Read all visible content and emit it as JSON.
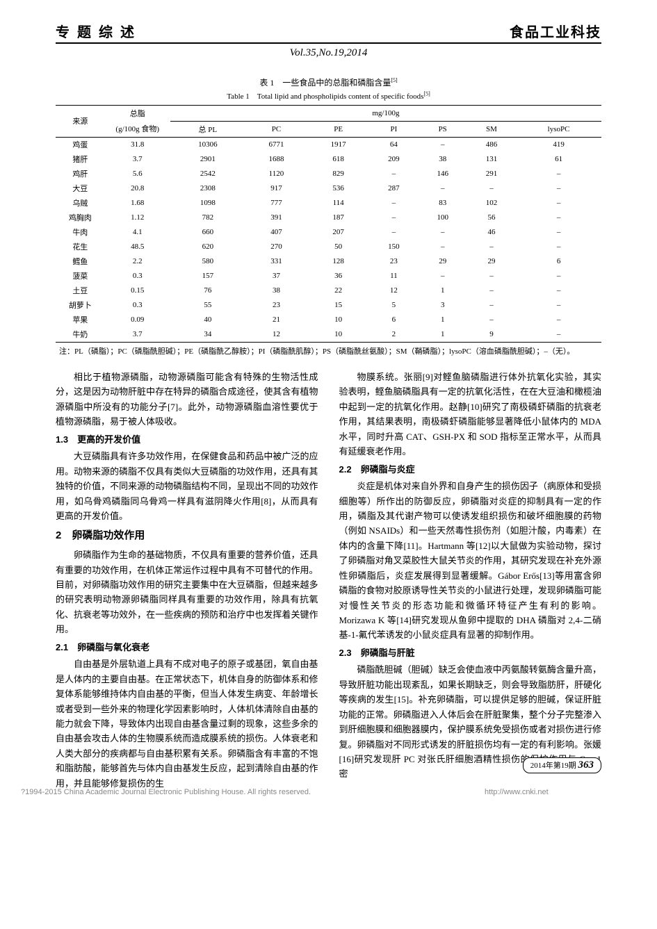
{
  "header": {
    "left": "专 题 综 述",
    "right": "食品工业科技",
    "sub": "Vol.35,No.19,2014"
  },
  "table": {
    "title_cn": "表 1　一些食品中的总脂和磷脂含量",
    "title_cn_sup": "[5]",
    "title_en": "Table 1　Total lipid and phospholipids content of specific foods",
    "title_en_sup": "[5]",
    "col_source": "来源",
    "col_totalfat": "总脂",
    "col_totalfat_unit": "(g/100g 食物)",
    "col_mg_group": "mg/100g",
    "subcols": [
      "总 PL",
      "PC",
      "PE",
      "PI",
      "PS",
      "SM",
      "lysoPC"
    ],
    "rows": [
      [
        "鸡蛋",
        "31.8",
        "10306",
        "6771",
        "1917",
        "64",
        "–",
        "486",
        "419"
      ],
      [
        "猪肝",
        "3.7",
        "2901",
        "1688",
        "618",
        "209",
        "38",
        "131",
        "61"
      ],
      [
        "鸡肝",
        "5.6",
        "2542",
        "1120",
        "829",
        "–",
        "146",
        "291",
        "–"
      ],
      [
        "大豆",
        "20.8",
        "2308",
        "917",
        "536",
        "287",
        "–",
        "–",
        "–"
      ],
      [
        "乌贼",
        "1.68",
        "1098",
        "777",
        "114",
        "–",
        "83",
        "102",
        "–"
      ],
      [
        "鸡胸肉",
        "1.12",
        "782",
        "391",
        "187",
        "–",
        "100",
        "56",
        "–"
      ],
      [
        "牛肉",
        "4.1",
        "660",
        "407",
        "207",
        "–",
        "–",
        "46",
        "–"
      ],
      [
        "花生",
        "48.5",
        "620",
        "270",
        "50",
        "150",
        "–",
        "–",
        "–"
      ],
      [
        "鳕鱼",
        "2.2",
        "580",
        "331",
        "128",
        "23",
        "29",
        "29",
        "6"
      ],
      [
        "菠菜",
        "0.3",
        "157",
        "37",
        "36",
        "11",
        "–",
        "–",
        "–"
      ],
      [
        "土豆",
        "0.15",
        "76",
        "38",
        "22",
        "12",
        "1",
        "–",
        "–"
      ],
      [
        "胡萝卜",
        "0.3",
        "55",
        "23",
        "15",
        "5",
        "3",
        "–",
        "–"
      ],
      [
        "苹果",
        "0.09",
        "40",
        "21",
        "10",
        "6",
        "1",
        "–",
        "–"
      ],
      [
        "牛奶",
        "3.7",
        "34",
        "12",
        "10",
        "2",
        "1",
        "9",
        "–"
      ]
    ],
    "note": "注：PL（磷脂）；PC（磷脂酰胆碱）；PE（磷脂酰乙醇胺）；PI（磷脂酰肌醇）；PS（磷脂酰丝氨酸）；SM（鞘磷脂）；lysoPC（溶血磷脂酰胆碱）；–（无）。"
  },
  "left_col": {
    "p1": "相比于植物源磷脂，动物源磷脂可能含有特殊的生物活性成分，这是因为动物肝脏中存在特异的磷脂合成途径，使其含有植物源磷脂中所没有的功能分子[7]。此外，动物源磷脂血溶性要优于植物源磷脂，易于被人体吸收。",
    "h1_3": "1.3　更高的开发价值",
    "p2": "大豆磷脂具有许多功效作用，在保健食品和药品中被广泛的应用。动物来源的磷脂不仅具有类似大豆磷脂的功效作用，还具有其独特的价值，不同来源的动物磷脂结构不同，呈现出不同的功效作用，如乌骨鸡磷脂同乌骨鸡一样具有滋阴降火作用[8]，从而具有更高的开发价值。",
    "h2": "2　卵磷脂功效作用",
    "p3": "卵磷脂作为生命的基础物质，不仅具有重要的营养价值，还具有重要的功效作用，在机体正常运作过程中具有不可替代的作用。目前，对卵磷脂功效作用的研究主要集中在大豆磷脂，但越来越多的研究表明动物源卵磷脂同样具有重要的功效作用，除具有抗氧化、抗衰老等功效外，在一些疾病的预防和治疗中也发挥着关键作用。",
    "h2_1": "2.1　卵磷脂与氧化衰老",
    "p4": "自由基是外层轨道上具有不成对电子的原子或基团，氧自由基是人体内的主要自由基。在正常状态下，机体自身的防御体系和修复体系能够维持体内自由基的平衡，但当人体发生病变、年龄增长或者受到一些外来的物理化学因素影响时，人体机体清除自由基的能力就会下降，导致体内出现自由基含量过剩的现象，这些多余的自由基会攻击人体的生物膜系统而造成膜系统的损伤。人体衰老和人类大部分的疾病都与自由基积累有关系。卵磷脂含有丰富的不饱和脂肪酸，能够首先与体内自由基发生反应，起到清除自由基的作用，并且能够修复损伤的生"
  },
  "right_col": {
    "p1": "物膜系统。张丽[9]对鲣鱼脑磷脂进行体外抗氧化实验，其实验表明，鲣鱼脑磷脂具有一定的抗氧化活性，在在大豆油和橄榄油中起到一定的抗氧化作用。赵静[10]研究了南极磷虾磷脂的抗衰老作用，其结果表明，南极磷虾磷脂能够显著降低小鼠体内的 MDA 水平，同时升高 CAT、GSH-PX 和 SOD 指标至正常水平，从而具有延缓衰老作用。",
    "h2_2": "2.2　卵磷脂与炎症",
    "p2": "炎症是机体对来自外界和自身产生的损伤因子（病原体和受损细胞等）所作出的防御反应，卵磷脂对炎症的抑制具有一定的作用，磷脂及其代谢产物可以使诱发组织损伤和破坏细胞膜的药物（例如 NSAIDs）和一些天然毒性损伤剂（如胆汁酸，内毒素）在体内的含量下降[11]。Hartmann 等[12]以大鼠做为实验动物，探讨了卵磷脂对角叉菜胶性大鼠关节炎的作用，其研究发现在补充外源性卵磷脂后，炎症发展得到显著缓解。Gábor Erős[13]等用富含卵磷脂的食物对胶原诱导性关节炎的小鼠进行处理，发现卵磷脂可能对慢性关节炎的形态功能和微循环特征产生有利的影响。Morizawa K 等[14]研究发现从鱼卵中提取的 DHA 磷脂对 2,4-二硝基-1-氟代苯诱发的小鼠炎症具有显著的抑制作用。",
    "h2_3": "2.3　卵磷脂与肝脏",
    "p3": "磷脂酰胆碱（胆碱）缺乏会使血液中丙氨酸转氨酶含量升高，导致肝脏功能出现紊乱，如果长期缺乏，则会导致脂肪肝，肝硬化等疾病的发生[15]。补充卵磷脂，可以提供足够的胆碱，保证肝脏功能的正常。卵磷脂进入人体后会在肝脏聚集，整个分子完整渗入到肝细胞膜和细胞器膜内，保护膜系统免受损伤或者对损伤进行修复。卵磷脂对不同形式诱发的肝脏损伤均有一定的有利影响。张媛[16]研究发现肝 PC 对张氏肝细胞酒精性损伤的保护作用与 Cav-1 密"
  },
  "footer": {
    "badge_year": "2014年第19期",
    "badge_page": "363",
    "copyright": "?1994-2015 China Academic Journal Electronic Publishing House. All rights reserved.",
    "url": "http://www.cnki.net"
  }
}
